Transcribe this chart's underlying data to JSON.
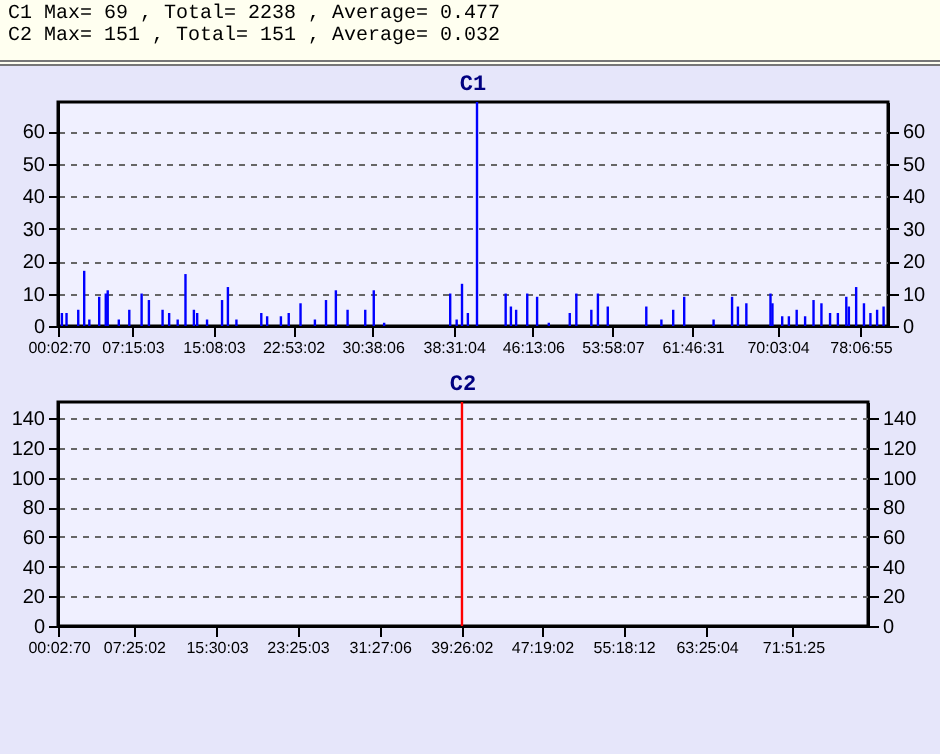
{
  "chart_data": [
    {
      "type": "bar",
      "title": "C1",
      "annotations": [
        "C1 Max= 69 , Total= 2238 , Average= 0.477"
      ],
      "x": [
        0.38,
        0.83,
        1.97,
        2.55,
        3.05,
        4.01,
        4.65,
        4.84,
        5.92,
        6.94,
        8.14,
        8.85,
        10.18,
        10.82,
        11.65,
        12.41,
        13.23,
        13.55,
        14.51,
        15.97,
        16.54,
        17.37,
        19.79,
        20.36,
        21.7,
        22.46,
        23.61,
        25.01,
        26.09,
        27.05,
        28.19,
        29.91,
        30.74,
        31.75,
        38.18,
        38.81,
        39.33,
        39.9,
        40.79,
        43.58,
        44.09,
        44.6,
        45.68,
        46.64,
        47.78,
        49.82,
        50.46,
        51.92,
        52.56,
        53.52,
        57.27,
        58.74,
        59.89,
        60.96,
        63.82,
        65.62,
        66.19,
        67.01,
        69.36,
        69.55,
        70.5,
        71.15,
        71.91,
        72.73,
        73.55,
        74.32,
        75.16,
        75.92,
        76.74,
        76.99,
        77.7,
        78.46,
        79.09,
        79.74,
        80.37
      ],
      "series": [
        {
          "color": "#0000ff",
          "values": [
            4,
            4,
            5,
            17,
            2,
            9,
            10,
            11,
            2,
            5,
            10,
            8,
            5,
            4,
            2,
            16,
            5,
            4,
            2,
            8,
            12,
            2,
            4,
            3,
            3,
            4,
            7,
            2,
            8,
            11,
            5,
            5,
            11,
            1,
            10,
            2,
            13,
            4,
            69,
            10,
            6,
            5,
            10,
            9,
            1,
            4,
            10,
            5,
            10,
            6,
            6,
            2,
            5,
            9,
            2,
            9,
            6,
            7,
            10,
            7,
            3,
            3,
            5,
            3,
            8,
            7,
            4,
            4,
            9,
            6,
            12,
            7,
            4,
            5,
            6
          ]
        }
      ],
      "xlim": [
        0,
        80.8
      ],
      "xticks": [
        {
          "value": 0.0528,
          "label": "00:02:70"
        },
        {
          "value": 7.2508,
          "label": "07:15:03"
        },
        {
          "value": 15.1342,
          "label": "15:08:03"
        },
        {
          "value": 22.8839,
          "label": "22:53:02"
        },
        {
          "value": 30.635,
          "label": "30:38:06"
        },
        {
          "value": 38.5178,
          "label": "38:31:04"
        },
        {
          "value": 46.2183,
          "label": "46:13:06"
        },
        {
          "value": 53.9686,
          "label": "53:58:07"
        },
        {
          "value": 61.7753,
          "label": "61:46:31"
        },
        {
          "value": 70.0511,
          "label": "70:03:04"
        },
        {
          "value": 78.1153,
          "label": "78:06:55"
        }
      ],
      "ylim": [
        0,
        69
      ],
      "yticks": [
        0,
        10,
        20,
        30,
        40,
        50,
        60
      ],
      "y2lim": [
        0,
        69
      ],
      "y2ticks": [
        0,
        10,
        20,
        30,
        40,
        50,
        60
      ],
      "grid": "y"
    },
    {
      "type": "bar",
      "title": "C2",
      "annotations": [
        "C2 Max= 151 , Total= 151 , Average= 0.032"
      ],
      "x": [
        39.5
      ],
      "series": [
        {
          "color": "#ff0000",
          "values": [
            151
          ]
        }
      ],
      "xlim": [
        0,
        79.2
      ],
      "xticks": [
        {
          "value": 0.0528,
          "label": "00:02:70"
        },
        {
          "value": 7.4172,
          "label": "07:25:02"
        },
        {
          "value": 15.5008,
          "label": "15:30:03"
        },
        {
          "value": 23.4175,
          "label": "23:25:03"
        },
        {
          "value": 31.4517,
          "label": "31:27:06"
        },
        {
          "value": 39.4339,
          "label": "39:26:02"
        },
        {
          "value": 47.3172,
          "label": "47:19:02"
        },
        {
          "value": 55.3033,
          "label": "55:18:12"
        },
        {
          "value": 63.4178,
          "label": "63:25:04"
        },
        {
          "value": 71.8569,
          "label": "71:51:25"
        }
      ],
      "ylim": [
        0,
        151
      ],
      "yticks": [
        0,
        20,
        40,
        60,
        80,
        100,
        120,
        140
      ],
      "y2lim": [
        0,
        151
      ],
      "y2ticks": [
        0,
        20,
        40,
        60,
        80,
        100,
        120,
        140
      ],
      "grid": "y"
    }
  ]
}
